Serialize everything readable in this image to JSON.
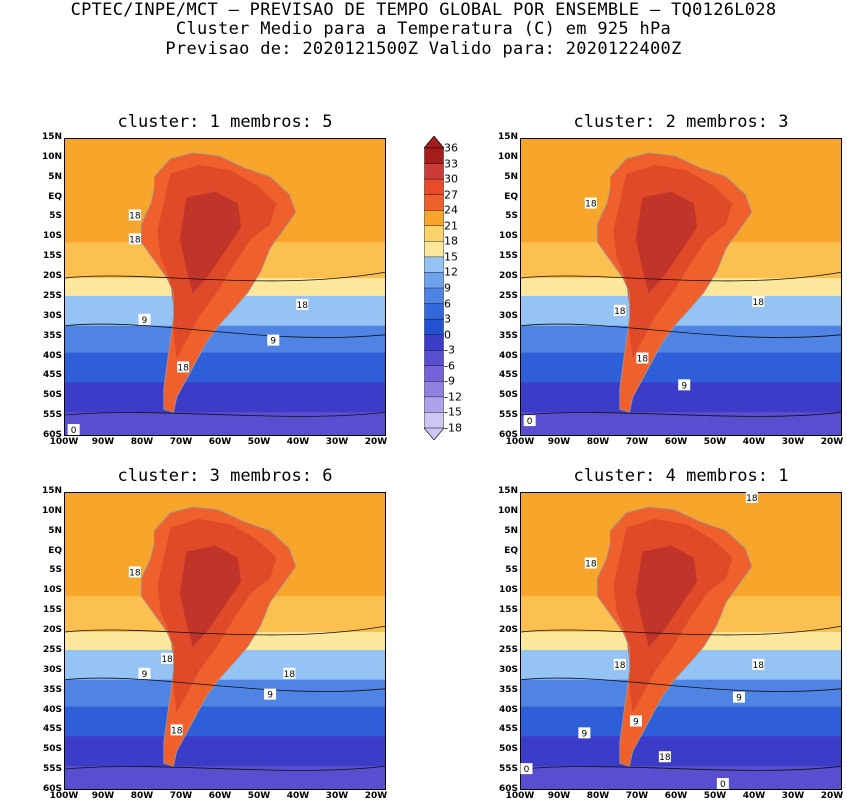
{
  "header": {
    "line1": "CPTEC/INPE/MCT – PREVISAO DE TEMPO GLOBAL POR ENSEMBLE – TQ0126L028",
    "line2": "Cluster Medio para a Temperatura (C) em 925 hPa",
    "line3": "Previsao de: 2020121500Z   Valido para: 2020122400Z"
  },
  "lat_labels": [
    "15N",
    "10N",
    "5N",
    "EQ",
    "5S",
    "10S",
    "15S",
    "20S",
    "25S",
    "30S",
    "35S",
    "40S",
    "45S",
    "50S",
    "55S",
    "60S"
  ],
  "lon_labels": [
    "100W",
    "90W",
    "80W",
    "70W",
    "60W",
    "50W",
    "40W",
    "30W",
    "20W"
  ],
  "colorbar": {
    "labels": [
      "36",
      "33",
      "30",
      "27",
      "24",
      "21",
      "18",
      "15",
      "12",
      "9",
      "6",
      "3",
      "0",
      "-3",
      "-6",
      "-9",
      "-12",
      "-15",
      "-18"
    ],
    "colors": [
      "#a51c1c",
      "#cd3a3a",
      "#e84a2a",
      "#f0602c",
      "#f7a52b",
      "#fbd36d",
      "#fde79c",
      "#95c3f3",
      "#6ea3ec",
      "#4f84e5",
      "#3468dc",
      "#2252cf",
      "#3c3cc8",
      "#5a4ed0",
      "#7462d8",
      "#9080e2",
      "#b0a2ea",
      "#cfc6f3"
    ]
  },
  "panels": [
    {
      "title": "cluster: 1   membros: 5",
      "labels": [
        "18",
        "18",
        "18",
        "9",
        "9",
        "18",
        "0"
      ]
    },
    {
      "title": "cluster: 2   membros: 3",
      "labels": [
        "18",
        "18",
        "18",
        "9",
        "18",
        "0"
      ]
    },
    {
      "title": "cluster: 3   membros: 6",
      "labels": [
        "18",
        "18",
        "18",
        "9",
        "9",
        "18"
      ]
    },
    {
      "title": "cluster: 4   membros: 1",
      "labels": [
        "18",
        "18",
        "18",
        "18",
        "9",
        "9",
        "18",
        "9",
        "0",
        "0"
      ]
    }
  ]
}
